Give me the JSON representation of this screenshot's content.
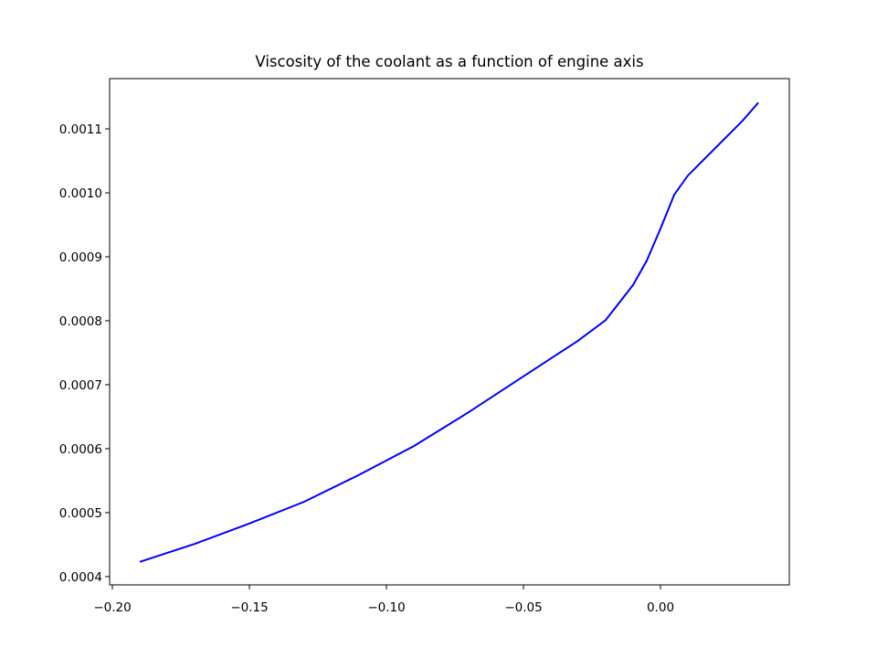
{
  "chart_data": {
    "type": "line",
    "title": "Viscosity of the coolant as a function of engine axis",
    "x": [
      -0.19,
      -0.17,
      -0.15,
      -0.13,
      -0.11,
      -0.09,
      -0.07,
      -0.05,
      -0.03,
      -0.02,
      -0.01,
      -0.005,
      0.0,
      0.005,
      0.01,
      0.02,
      0.03,
      0.0357
    ],
    "series": [
      {
        "color": "#0000ff",
        "values": [
          0.000423,
          0.000451,
          0.000483,
          0.000517,
          0.000559,
          0.000604,
          0.000657,
          0.000713,
          0.000769,
          0.000801,
          0.000856,
          0.000894,
          0.000944,
          0.000997,
          0.001027,
          0.00107,
          0.001113,
          0.001141
        ]
      }
    ],
    "xlim": [
      -0.201,
      0.047
    ],
    "xticks": [
      {
        "value": -0.2,
        "label": "−0.20"
      },
      {
        "value": -0.15,
        "label": "−0.15"
      },
      {
        "value": -0.1,
        "label": "−0.10"
      },
      {
        "value": -0.05,
        "label": "−0.05"
      },
      {
        "value": 0,
        "label": "0.00"
      }
    ],
    "ylim": [
      0.000387,
      0.0011786
    ],
    "yticks": [
      0.0004,
      0.0005,
      0.0006,
      0.0007,
      0.0008,
      0.0009,
      {
        "value": 0.001,
        "label": "0.0010"
      },
      0.0011
    ]
  }
}
